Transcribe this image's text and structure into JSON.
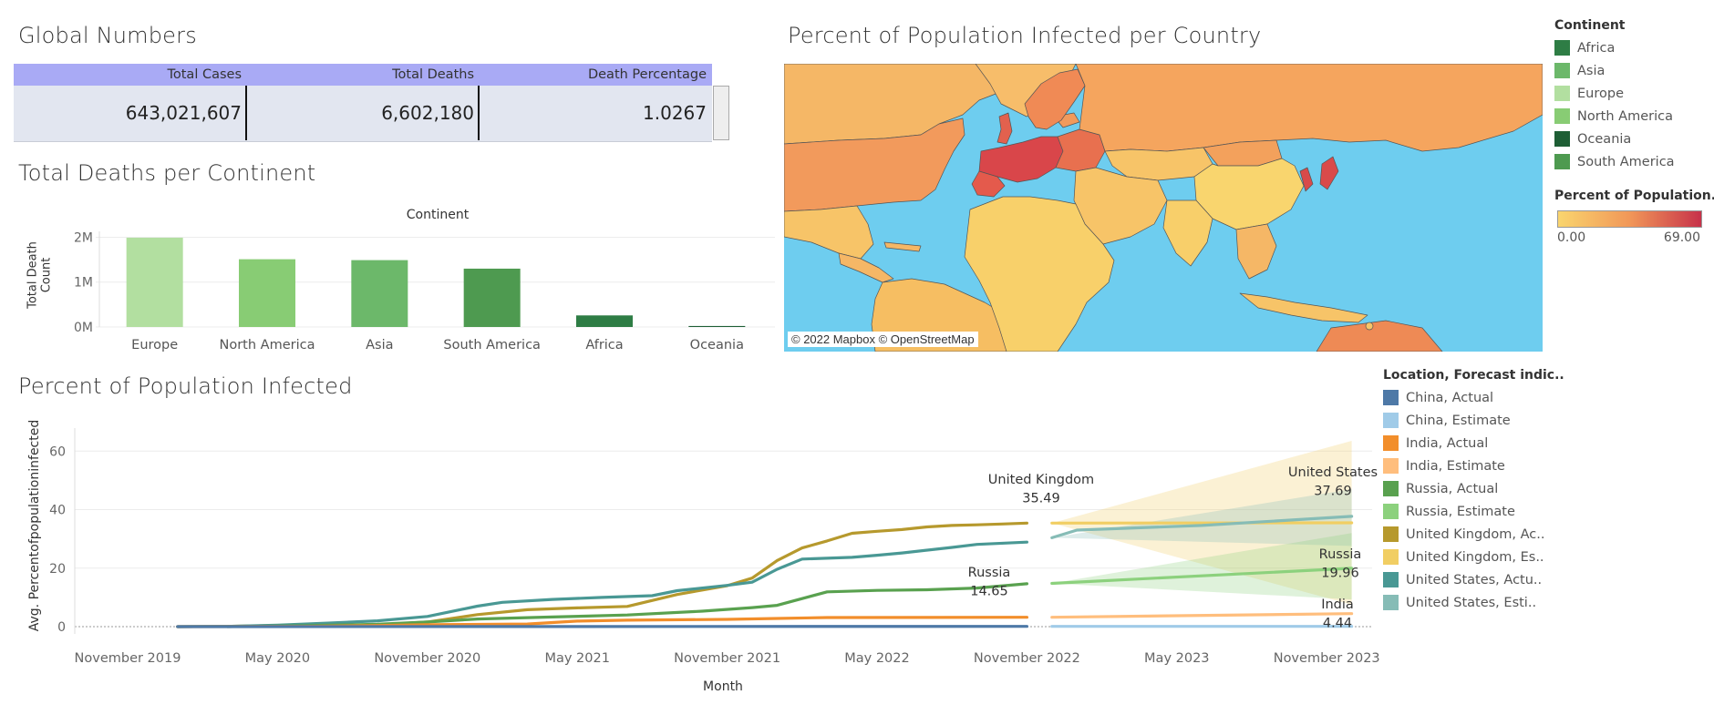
{
  "global_numbers": {
    "title": "Global Numbers",
    "headers": [
      "Total Cases",
      "Total Deaths",
      "Death Percentage"
    ],
    "values": [
      "643,021,607",
      "6,602,180",
      "1.0267"
    ]
  },
  "deaths_per_continent": {
    "title": "Total Deaths per Continent"
  },
  "map": {
    "title": "Percent of Population Infected per Country",
    "credit": "© 2022 Mapbox © OpenStreetMap",
    "legend_title": "Continent",
    "legend": [
      {
        "label": "Africa",
        "color": "#2e7d45"
      },
      {
        "label": "Asia",
        "color": "#6cb86a"
      },
      {
        "label": "Europe",
        "color": "#b2dfa0"
      },
      {
        "label": "North America",
        "color": "#88cc74"
      },
      {
        "label": "Oceania",
        "color": "#1e5e35"
      },
      {
        "label": "South America",
        "color": "#4e9a50"
      }
    ],
    "color_scale": {
      "title": "Percent of Population..",
      "min": "0.00",
      "max": "69.00",
      "low_color": "#f9d56e",
      "mid_color": "#f19758",
      "high_color": "#c7324a"
    },
    "ocean_color": "#6ecdef"
  },
  "infected": {
    "title": "Percent of Population Infected",
    "legend_title": "Location, Forecast indic..",
    "legend": [
      {
        "label": "China, Actual",
        "color": "#4e79a7"
      },
      {
        "label": "China, Estimate",
        "color": "#a0cbe8"
      },
      {
        "label": "India, Actual",
        "color": "#f28e2b"
      },
      {
        "label": "India, Estimate",
        "color": "#ffbe7d"
      },
      {
        "label": "Russia, Actual",
        "color": "#59a14f"
      },
      {
        "label": "Russia, Estimate",
        "color": "#8cd17d"
      },
      {
        "label": "United Kingdom, Ac..",
        "color": "#b6992d"
      },
      {
        "label": "United Kingdom, Es..",
        "color": "#f1ce63"
      },
      {
        "label": "United States, Actu..",
        "color": "#499894"
      },
      {
        "label": "United States, Esti..",
        "color": "#86bcb6"
      }
    ]
  },
  "chart_data": [
    {
      "type": "bar",
      "title": "Total Deaths per Continent",
      "xlabel": "Continent",
      "ylabel": "Total Death Count",
      "categories": [
        "Europe",
        "North America",
        "Asia",
        "South America",
        "Africa",
        "Oceania"
      ],
      "values": [
        1990000,
        1510000,
        1490000,
        1300000,
        258000,
        22000
      ],
      "colors": [
        "#b2dfa0",
        "#88cc74",
        "#6cb86a",
        "#4e9a50",
        "#2e7d45",
        "#1e5e35"
      ],
      "ylim": [
        0,
        2050000
      ],
      "yticks": [
        {
          "value": 0,
          "label": "0M"
        },
        {
          "value": 1000000,
          "label": "1M"
        },
        {
          "value": 2000000,
          "label": "2M"
        }
      ],
      "grid": true
    },
    {
      "type": "line",
      "title": "Percent of Population Infected",
      "xlabel": "Month",
      "ylabel": "Avg. Percentofpopulationinfected",
      "ylim": [
        0,
        66
      ],
      "yticks": [
        0,
        20,
        40,
        60
      ],
      "xticks": [
        "November 2019",
        "May 2020",
        "November 2020",
        "May 2021",
        "November 2021",
        "May 2022",
        "November 2022",
        "May 2023",
        "November 2023"
      ],
      "x_start": "2019-11",
      "grid": true,
      "series": [
        {
          "name": "United Kingdom, Actual",
          "color": "#b6992d",
          "points": [
            [
              "2020-01",
              0
            ],
            [
              "2020-03",
              0.1
            ],
            [
              "2020-05",
              0.4
            ],
            [
              "2020-07",
              0.5
            ],
            [
              "2020-09",
              0.6
            ],
            [
              "2020-11",
              1.6
            ],
            [
              "2021-01",
              4.1
            ],
            [
              "2021-03",
              5.8
            ],
            [
              "2021-05",
              6.4
            ],
            [
              "2021-07",
              6.9
            ],
            [
              "2021-09",
              11.0
            ],
            [
              "2021-11",
              14.0
            ],
            [
              "2021-12",
              16.6
            ],
            [
              "2022-01",
              22.6
            ],
            [
              "2022-02",
              26.9
            ],
            [
              "2022-03",
              29.3
            ],
            [
              "2022-04",
              31.9
            ],
            [
              "2022-05",
              32.6
            ],
            [
              "2022-06",
              33.2
            ],
            [
              "2022-07",
              34.1
            ],
            [
              "2022-08",
              34.6
            ],
            [
              "2022-09",
              34.8
            ],
            [
              "2022-10",
              35.1
            ],
            [
              "2022-11",
              35.4
            ]
          ]
        },
        {
          "name": "United States, Actual",
          "color": "#499894",
          "points": [
            [
              "2020-01",
              0
            ],
            [
              "2020-03",
              0.1
            ],
            [
              "2020-05",
              0.5
            ],
            [
              "2020-07",
              1.2
            ],
            [
              "2020-09",
              2.0
            ],
            [
              "2020-11",
              3.5
            ],
            [
              "2021-01",
              7.0
            ],
            [
              "2021-02",
              8.3
            ],
            [
              "2021-04",
              9.3
            ],
            [
              "2021-06",
              10.0
            ],
            [
              "2021-08",
              10.6
            ],
            [
              "2021-09",
              12.3
            ],
            [
              "2021-11",
              14.1
            ],
            [
              "2021-12",
              15.2
            ],
            [
              "2022-01",
              19.6
            ],
            [
              "2022-02",
              23.1
            ],
            [
              "2022-04",
              23.7
            ],
            [
              "2022-05",
              24.4
            ],
            [
              "2022-06",
              25.2
            ],
            [
              "2022-08",
              27.1
            ],
            [
              "2022-09",
              28.1
            ],
            [
              "2022-11",
              28.9
            ]
          ]
        },
        {
          "name": "Russia, Actual",
          "color": "#59a14f",
          "points": [
            [
              "2020-03",
              0
            ],
            [
              "2020-06",
              0.3
            ],
            [
              "2020-09",
              0.8
            ],
            [
              "2020-11",
              1.6
            ],
            [
              "2021-01",
              2.6
            ],
            [
              "2021-04",
              3.3
            ],
            [
              "2021-07",
              4.0
            ],
            [
              "2021-10",
              5.3
            ],
            [
              "2021-12",
              6.5
            ],
            [
              "2022-01",
              7.3
            ],
            [
              "2022-03",
              11.9
            ],
            [
              "2022-05",
              12.4
            ],
            [
              "2022-07",
              12.6
            ],
            [
              "2022-09",
              13.2
            ],
            [
              "2022-11",
              14.65
            ]
          ]
        },
        {
          "name": "India, Actual",
          "color": "#f28e2b",
          "points": [
            [
              "2020-01",
              0
            ],
            [
              "2020-06",
              0.1
            ],
            [
              "2020-09",
              0.4
            ],
            [
              "2020-11",
              0.7
            ],
            [
              "2021-03",
              0.9
            ],
            [
              "2021-05",
              1.9
            ],
            [
              "2021-07",
              2.2
            ],
            [
              "2021-11",
              2.5
            ],
            [
              "2022-01",
              2.8
            ],
            [
              "2022-03",
              3.1
            ],
            [
              "2022-11",
              3.2
            ]
          ]
        },
        {
          "name": "China, Actual",
          "color": "#4e79a7",
          "points": [
            [
              "2020-01",
              0
            ],
            [
              "2022-11",
              0.1
            ]
          ]
        },
        {
          "name": "United Kingdom, Estimate",
          "color": "#f1ce63",
          "points": [
            [
              "2022-12",
              35.4
            ],
            [
              "2023-12",
              35.49
            ]
          ],
          "band": [
            [
              "2022-12",
              35.4,
              35.4
            ],
            [
              "2023-12",
              63.5,
              7.5
            ]
          ]
        },
        {
          "name": "United States, Estimate",
          "color": "#86bcb6",
          "points": [
            [
              "2022-12",
              30.4
            ],
            [
              "2023-01",
              33.0
            ],
            [
              "2023-06",
              34.6
            ],
            [
              "2023-12",
              37.69
            ]
          ],
          "band": [
            [
              "2022-12",
              30.4,
              30.4
            ],
            [
              "2023-12",
              47.0,
              27.6
            ]
          ]
        },
        {
          "name": "Russia, Estimate",
          "color": "#8cd17d",
          "points": [
            [
              "2022-12",
              14.8
            ],
            [
              "2023-12",
              19.96
            ]
          ],
          "band": [
            [
              "2022-12",
              14.8,
              14.8
            ],
            [
              "2023-12",
              32.0,
              9.3
            ]
          ]
        },
        {
          "name": "India, Estimate",
          "color": "#ffbe7d",
          "points": [
            [
              "2022-12",
              3.2
            ],
            [
              "2023-12",
              4.44
            ]
          ]
        },
        {
          "name": "China, Estimate",
          "color": "#a0cbe8",
          "points": [
            [
              "2022-12",
              0.1
            ],
            [
              "2023-12",
              0.1
            ]
          ]
        }
      ],
      "annotations": [
        {
          "label": "United Kingdom",
          "value": "35.49"
        },
        {
          "label": "United States",
          "value": "37.69"
        },
        {
          "label": "Russia",
          "value": "14.65"
        },
        {
          "label": "Russia",
          "value": "19.96"
        },
        {
          "label": "India",
          "value": "4.44"
        }
      ]
    }
  ]
}
